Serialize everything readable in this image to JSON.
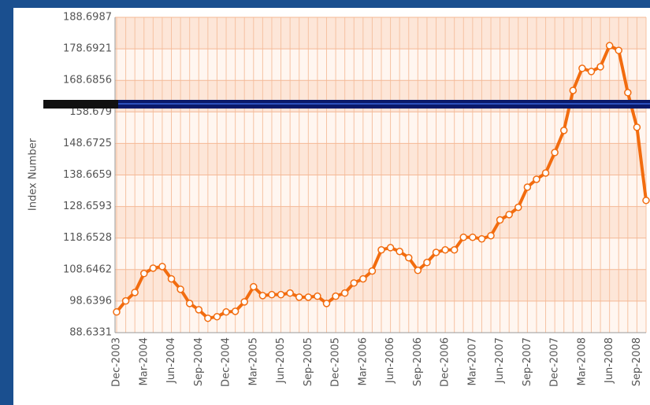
{
  "chart_data": {
    "type": "line",
    "y_label": "Index Number",
    "categories": [
      "Dec-2003",
      null,
      null,
      "Mar-2004",
      null,
      null,
      "Jun-2004",
      null,
      null,
      "Sep-2004",
      null,
      null,
      "Dec-2004",
      null,
      null,
      "Mar-2005",
      null,
      null,
      "Jun-2005",
      null,
      null,
      "Sep-2005",
      null,
      null,
      "Dec-2005",
      null,
      null,
      "Mar-2006",
      null,
      null,
      "Jun-2006",
      null,
      null,
      "Sep-2006",
      null,
      null,
      "Dec-2006",
      null,
      null,
      "Mar-2007",
      null,
      null,
      "Jun-2007",
      null,
      null,
      "Sep-2007",
      null,
      null,
      "Dec-2007",
      null,
      null,
      "Mar-2008",
      null,
      null,
      "Jun-2008",
      null,
      null,
      "Sep-2008",
      null
    ],
    "series": [
      {
        "color": "#f26c0f",
        "values": [
          95.2,
          98.7,
          101.4,
          107.4,
          109.1,
          109.6,
          105.7,
          102.4,
          97.9,
          95.9,
          93.2,
          93.7,
          95.2,
          95.4,
          98.4,
          103.2,
          100.4,
          100.7,
          100.7,
          101.2,
          99.9,
          99.9,
          100.2,
          97.9,
          100.2,
          101.2,
          104.4,
          105.7,
          108.2,
          114.9,
          115.6,
          114.4,
          112.4,
          108.4,
          110.9,
          114.1,
          114.9,
          114.9,
          118.9,
          118.9,
          118.4,
          119.4,
          124.4,
          126.1,
          128.4,
          134.8,
          137.3,
          139.3,
          145.8,
          152.8,
          165.5,
          172.5,
          171.5,
          173.0,
          179.7,
          178.2,
          164.8,
          153.8,
          130.6
        ]
      }
    ],
    "ylim": [
      88.6331,
      188.6987
    ],
    "yticks": [
      88.6331,
      98.6396,
      108.6462,
      118.6528,
      128.6593,
      138.6659,
      148.6725,
      158.679,
      168.6856,
      178.6921,
      188.6987
    ],
    "grid": true
  }
}
